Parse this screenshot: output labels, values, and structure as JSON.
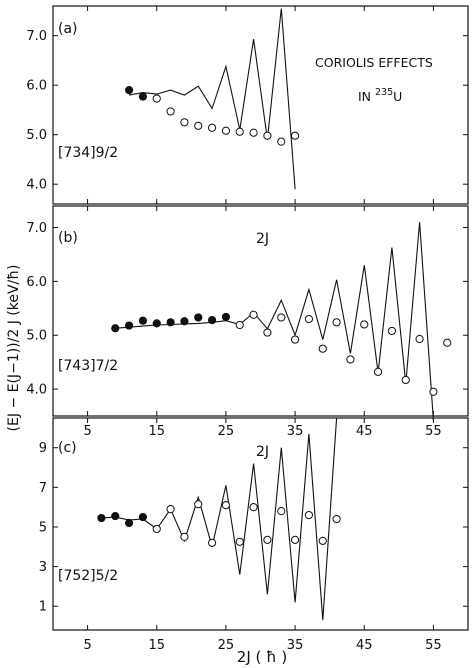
{
  "figure": {
    "title_line1": "CORIOLIS EFFECTS",
    "title_line2_prefix": "IN ",
    "title_line2_sup": "235",
    "title_line2_suffix": "U",
    "ylabel": "(EJ − E(J−1))/2 J  (keV/ħ)",
    "panel_xlabel": "2J",
    "bottom_xlabel": "2J ( ħ )"
  },
  "chart_data": [
    {
      "type": "scatter",
      "panel_label": "(a)",
      "band_label": "[734]9/2",
      "xlim": [
        0,
        60
      ],
      "ylim": [
        3.6,
        7.6
      ],
      "xticks": [
        5,
        15,
        25,
        35,
        45,
        55
      ],
      "yticks": [
        4.0,
        5.0,
        6.0,
        7.0
      ],
      "ytick_labels": [
        "4.0",
        "5.0",
        "6.0",
        "7.0"
      ],
      "grid": false,
      "series": [
        {
          "kind": "filled_points",
          "x": [
            11,
            13
          ],
          "y": [
            5.9,
            5.77
          ]
        },
        {
          "kind": "open_points",
          "x": [
            15,
            17,
            19,
            21,
            23,
            25,
            27,
            29,
            31,
            33,
            35
          ],
          "y": [
            5.73,
            5.47,
            5.25,
            5.18,
            5.14,
            5.08,
            5.06,
            5.04,
            4.98,
            4.86,
            4.98
          ]
        },
        {
          "kind": "line",
          "x": [
            11,
            13,
            15,
            17,
            19,
            21,
            23,
            25,
            27,
            29,
            31,
            33,
            35
          ],
          "y": [
            5.8,
            5.85,
            5.82,
            5.9,
            5.8,
            5.98,
            5.53,
            6.38,
            5.1,
            6.93,
            4.9,
            7.55,
            3.9
          ]
        }
      ]
    },
    {
      "type": "scatter",
      "panel_label": "(b)",
      "band_label": "[743]7/2",
      "xlim": [
        0,
        60
      ],
      "ylim": [
        3.5,
        7.4
      ],
      "xticks": [
        5,
        15,
        25,
        35,
        45,
        55
      ],
      "yticks": [
        4.0,
        5.0,
        6.0,
        7.0
      ],
      "ytick_labels": [
        "4.0",
        "5.0",
        "6.0",
        "7.0"
      ],
      "grid": false,
      "series": [
        {
          "kind": "filled_points",
          "x": [
            9,
            11,
            13,
            15,
            17,
            19,
            21,
            23,
            25
          ],
          "y": [
            5.13,
            5.18,
            5.27,
            5.22,
            5.24,
            5.26,
            5.33,
            5.28,
            5.34
          ]
        },
        {
          "kind": "open_points",
          "x": [
            27,
            29,
            31,
            33,
            35,
            37,
            39,
            41,
            43,
            45,
            47,
            49,
            51,
            53,
            55,
            57
          ],
          "y": [
            5.19,
            5.38,
            5.05,
            5.33,
            4.92,
            5.3,
            4.75,
            5.24,
            4.55,
            5.2,
            4.32,
            5.08,
            4.17,
            4.93,
            3.95,
            4.86
          ]
        },
        {
          "kind": "line",
          "x": [
            9,
            11,
            13,
            15,
            17,
            19,
            21,
            23,
            25,
            27,
            29,
            31,
            33,
            35,
            37,
            39,
            41,
            43,
            45,
            47,
            49,
            51,
            53,
            55
          ],
          "y": [
            5.13,
            5.15,
            5.17,
            5.19,
            5.2,
            5.21,
            5.22,
            5.24,
            5.27,
            5.2,
            5.42,
            5.12,
            5.65,
            5.0,
            5.85,
            4.92,
            6.03,
            4.66,
            6.3,
            4.3,
            6.63,
            4.1,
            7.1,
            3.42
          ]
        }
      ]
    },
    {
      "type": "scatter",
      "panel_label": "(c)",
      "band_label": "[752]5/2",
      "xlim": [
        0,
        60
      ],
      "ylim": [
        -0.2,
        10.5
      ],
      "xticks": [
        5,
        15,
        25,
        35,
        45,
        55
      ],
      "yticks": [
        1,
        3,
        5,
        7,
        9
      ],
      "ytick_labels": [
        "1",
        "3",
        "5",
        "7",
        "9"
      ],
      "grid": false,
      "series": [
        {
          "kind": "filled_points",
          "x": [
            7,
            9,
            11,
            13
          ],
          "y": [
            5.45,
            5.55,
            5.2,
            5.5
          ]
        },
        {
          "kind": "open_points",
          "x": [
            15,
            17,
            19,
            21,
            23,
            25,
            27,
            29,
            31,
            33,
            35,
            37,
            39,
            41
          ],
          "y": [
            4.9,
            5.9,
            4.5,
            6.15,
            4.2,
            6.1,
            4.25,
            6.0,
            4.35,
            5.8,
            4.35,
            5.6,
            4.3,
            5.4
          ]
        },
        {
          "kind": "line",
          "x": [
            7,
            9,
            11,
            13,
            15,
            17,
            19,
            21,
            23,
            25,
            27,
            29,
            31,
            33,
            35,
            37,
            39,
            41
          ],
          "y": [
            5.45,
            5.5,
            5.35,
            5.4,
            4.9,
            5.9,
            4.3,
            6.5,
            4.0,
            7.1,
            2.6,
            8.2,
            1.6,
            9.0,
            1.2,
            9.7,
            0.3,
            10.5
          ]
        }
      ]
    }
  ]
}
